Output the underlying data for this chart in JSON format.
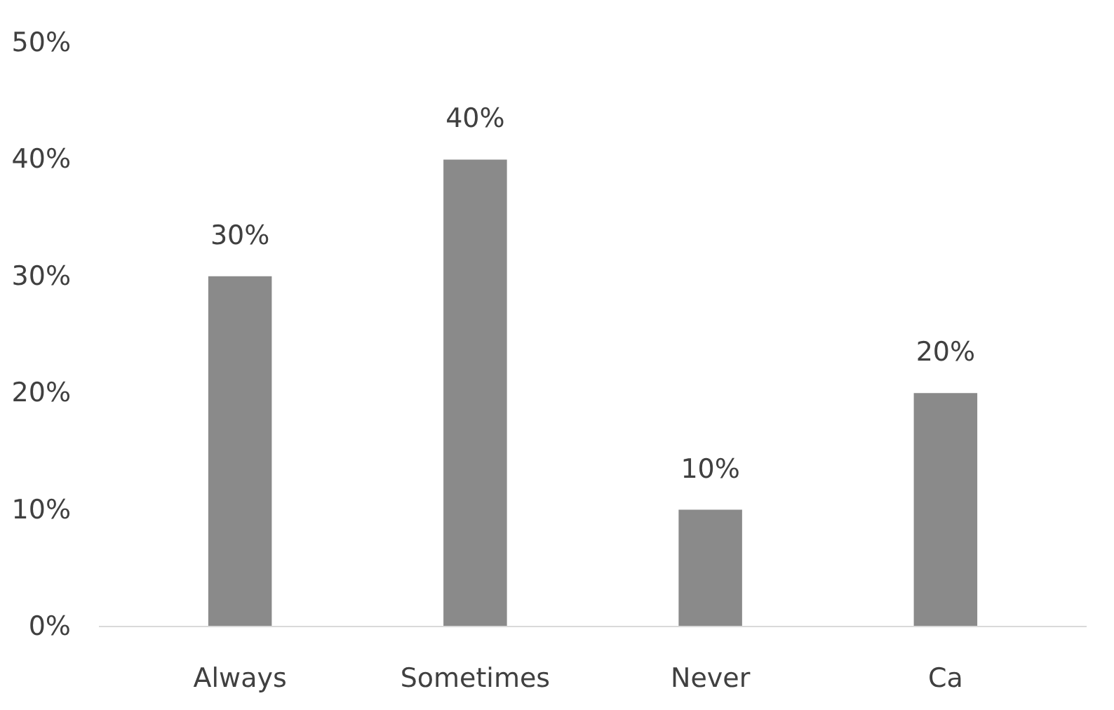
{
  "chart_data": {
    "type": "bar",
    "categories": [
      "Always",
      "Sometimes",
      "Never",
      "Ca"
    ],
    "values": [
      30,
      40,
      10,
      20
    ],
    "color": "#8a8a8a",
    "value_labels": [
      "30%",
      "40%",
      "10%",
      "20%"
    ],
    "ylim": [
      0,
      50
    ],
    "yticks": [
      {
        "value": 0,
        "label": "0%"
      },
      {
        "value": 10,
        "label": "10%"
      },
      {
        "value": 20,
        "label": "20%"
      },
      {
        "value": 30,
        "label": "30%"
      },
      {
        "value": 40,
        "label": "40%"
      },
      {
        "value": 50,
        "label": "50%"
      }
    ],
    "grid": false
  }
}
